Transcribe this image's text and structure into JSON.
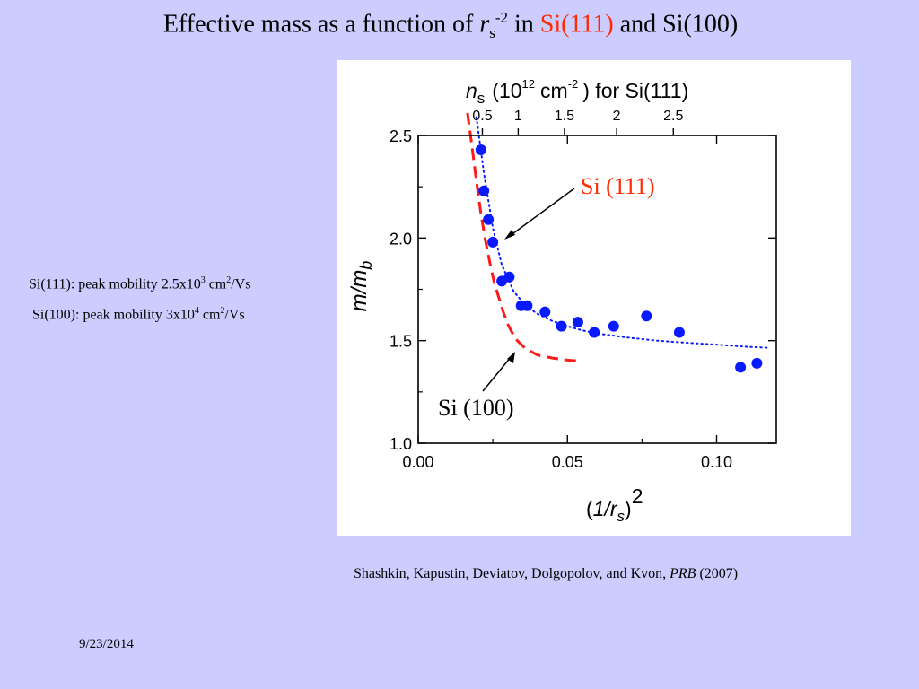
{
  "slide": {
    "title_prefix": "Effective mass as a function of",
    "title_var": "r",
    "title_sub": "s",
    "title_sup": "-2",
    "title_in": "in",
    "title_si111": "Si(111)",
    "title_and": "and Si(100)",
    "note1_prefix": "Si(111): peak mobility 2.5x10",
    "note1_exp": "3",
    "note1_unit": "cm",
    "note1_unit_exp": "2",
    "note1_suffix": "/Vs",
    "note2_prefix": "Si(100): peak mobility 3x10",
    "note2_exp": "4",
    "note2_unit": "cm",
    "note2_unit_exp": "2",
    "note2_suffix": "/Vs",
    "citation_authors": "Shashkin, Kapustin, Deviatov, Dolgopolov, and Kvon,",
    "citation_journal": "PRB",
    "citation_year": "(2007)",
    "date": "9/23/2014",
    "colors": {
      "background": "#ccccff",
      "accent_red": "#ff2a00"
    }
  },
  "chart_data": {
    "type": "scatter",
    "xlim": [
      0.0,
      0.12
    ],
    "ylim": [
      1.0,
      2.5
    ],
    "x_ticks": [
      "0.00",
      "0.05",
      "0.10"
    ],
    "y_ticks": [
      "1.0",
      "1.5",
      "2.0",
      "2.5"
    ],
    "x_tick_values": [
      0.0,
      0.05,
      0.1
    ],
    "y_tick_values": [
      1.0,
      1.5,
      2.0,
      2.5
    ],
    "top_ticks": [
      "0.5",
      "1",
      "1.5",
      "2",
      "2.5"
    ],
    "top_tick_values": [
      0.0215,
      0.0335,
      0.049,
      0.0665,
      0.0855
    ],
    "xlabel_open": "(",
    "xlabel_var": "1/r",
    "xlabel_sub": "s",
    "xlabel_close": ")",
    "xlabel_sup": "2",
    "ylabel_var": "m/m",
    "ylabel_sub": "b",
    "top_label_var": "n",
    "top_label_sub": "s",
    "top_label_open": "(10",
    "top_label_exp1": "12",
    "top_label_unit": "cm",
    "top_label_exp2": "-2",
    "top_label_rest": ") for Si(111)",
    "annotations": {
      "si111": "Si (111)",
      "si100": "Si (100)"
    },
    "series": [
      {
        "name": "Si (111)",
        "kind": "points",
        "color": "#0a1aff",
        "x": [
          0.021,
          0.022,
          0.0235,
          0.025,
          0.028,
          0.0305,
          0.0345,
          0.0365,
          0.0425,
          0.048,
          0.0535,
          0.059,
          0.0655,
          0.0765,
          0.0875,
          0.108,
          0.1135
        ],
        "y": [
          2.43,
          2.23,
          2.09,
          1.98,
          1.79,
          1.81,
          1.67,
          1.67,
          1.64,
          1.57,
          1.59,
          1.54,
          1.57,
          1.62,
          1.54,
          1.37,
          1.39
        ]
      },
      {
        "name": "Si (111) fit",
        "kind": "dotted-line",
        "color": "#0a1aff",
        "x": [
          0.0195,
          0.022,
          0.025,
          0.028,
          0.032,
          0.036,
          0.04,
          0.045,
          0.05,
          0.055,
          0.06,
          0.07,
          0.08,
          0.09,
          0.1,
          0.11,
          0.1175
        ],
        "y": [
          2.59,
          2.32,
          2.05,
          1.87,
          1.74,
          1.67,
          1.63,
          1.595,
          1.57,
          1.55,
          1.535,
          1.515,
          1.5,
          1.49,
          1.48,
          1.47,
          1.465
        ]
      },
      {
        "name": "Si (100)",
        "kind": "dashed-line",
        "color": "#ff1a1a",
        "x": [
          0.0165,
          0.018,
          0.0195,
          0.021,
          0.0225,
          0.024,
          0.0255,
          0.027,
          0.0285,
          0.03,
          0.0325,
          0.036,
          0.04,
          0.045,
          0.05,
          0.054
        ],
        "y": [
          2.61,
          2.45,
          2.28,
          2.12,
          1.99,
          1.88,
          1.78,
          1.71,
          1.64,
          1.58,
          1.51,
          1.46,
          1.43,
          1.415,
          1.405,
          1.4
        ]
      }
    ]
  }
}
